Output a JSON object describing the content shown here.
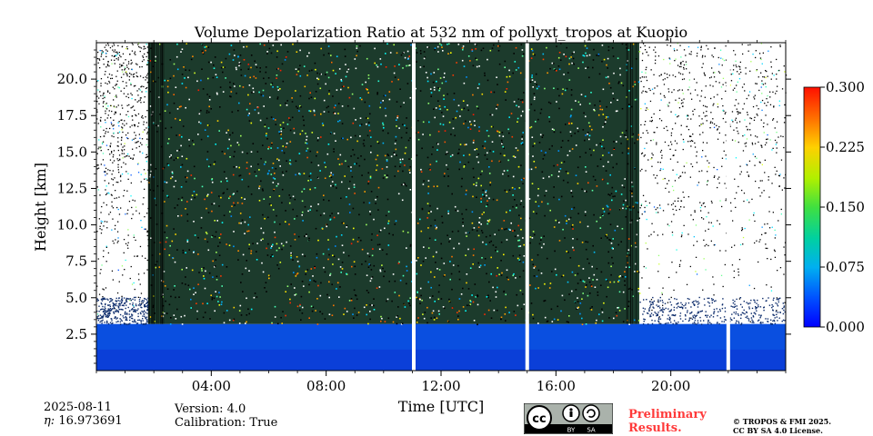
{
  "chart_data": {
    "type": "heatmap",
    "title": "Volume Depolarization Ratio at 532 nm of pollyxt_tropos at Kuopio",
    "xlabel": "Time [UTC]",
    "ylabel": "Height [km]",
    "xlim_hours": [
      0,
      24
    ],
    "ylim_km": [
      0,
      22.5
    ],
    "x_ticks": [
      "04:00",
      "08:00",
      "12:00",
      "16:00",
      "20:00"
    ],
    "x_tick_hours": [
      4,
      8,
      12,
      16,
      20
    ],
    "y_ticks": [
      "2.5",
      "5.0",
      "7.5",
      "10.0",
      "12.5",
      "15.0",
      "17.5",
      "20.0"
    ],
    "y_tick_values": [
      2.5,
      5.0,
      7.5,
      10.0,
      12.5,
      15.0,
      17.5,
      20.0
    ],
    "colorbar": {
      "min": 0.0,
      "max": 0.3,
      "ticks": [
        "0.000",
        "0.075",
        "0.150",
        "0.225",
        "0.300"
      ],
      "tick_values": [
        0.0,
        0.075,
        0.15,
        0.225,
        0.3
      ],
      "colormap": "jet"
    },
    "grid": false,
    "features": {
      "boundary_layer_top_km": 3.2,
      "noisy_signal_hours": [
        1.8,
        18.9
      ],
      "data_gaps_hours": [
        11.05,
        15.0,
        22.0
      ]
    }
  },
  "footer": {
    "date": "2025-08-11",
    "eta": "16.973691",
    "eta_prefix": "η: ",
    "version": "Version: 4.0",
    "calibration": "Calibration: True",
    "preliminary_line1": "Preliminary",
    "preliminary_line2": "Results.",
    "copyright_line1": "© TROPOS & FMI 2025.",
    "copyright_line2": "CC BY SA 4.0 License.",
    "license_badge": [
      "BY",
      "SA"
    ]
  },
  "colors": {
    "low": "#0033cc",
    "mid": "#33cc66",
    "high": "#ff2200",
    "prelim": "#ff3a3a"
  }
}
